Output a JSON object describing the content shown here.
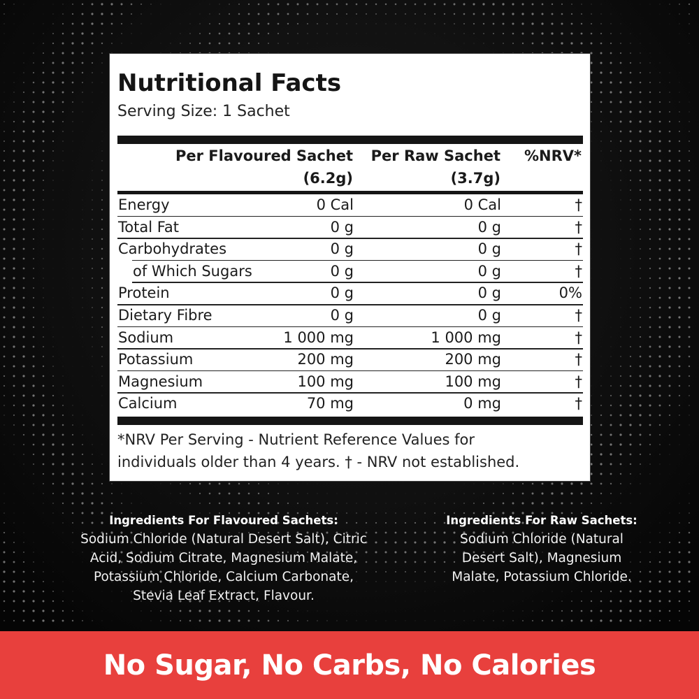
{
  "panel": {
    "title": "Nutritional Facts",
    "serving": "Serving Size: 1 Sachet",
    "headers": {
      "col1_line1": "Per Flavoured Sachet",
      "col1_line2": "(6.2g)",
      "col2_line1": "Per Raw Sachet",
      "col2_line2": "(3.7g)",
      "col3": "%NRV*"
    },
    "rows": [
      {
        "name": "Energy",
        "flavoured": "0 Cal",
        "raw": "0 Cal",
        "nrv": "†",
        "indent": false
      },
      {
        "name": "Total Fat",
        "flavoured": "0 g",
        "raw": "0 g",
        "nrv": "†",
        "indent": false
      },
      {
        "name": "Carbohydrates",
        "flavoured": "0 g",
        "raw": "0 g",
        "nrv": "†",
        "indent": false
      },
      {
        "name": "of Which Sugars",
        "flavoured": "0 g",
        "raw": "0 g",
        "nrv": "†",
        "indent": true
      },
      {
        "name": "Protein",
        "flavoured": "0 g",
        "raw": "0 g",
        "nrv": "0%",
        "indent": false
      },
      {
        "name": "Dietary Fibre",
        "flavoured": "0 g",
        "raw": "0 g",
        "nrv": "†",
        "indent": false
      },
      {
        "name": "Sodium",
        "flavoured": "1 000 mg",
        "raw": "1 000 mg",
        "nrv": "†",
        "indent": false
      },
      {
        "name": "Potassium",
        "flavoured": "200 mg",
        "raw": "200 mg",
        "nrv": "†",
        "indent": false
      },
      {
        "name": "Magnesium",
        "flavoured": "100 mg",
        "raw": "100 mg",
        "nrv": "†",
        "indent": false
      },
      {
        "name": "Calcium",
        "flavoured": "70 mg",
        "raw": "0 mg",
        "nrv": "†",
        "indent": false
      }
    ],
    "footnote_line1": "*NRV Per Serving - Nutrient Reference Values for",
    "footnote_line2": "individuals older than 4 years. † - NRV not established."
  },
  "ingredients": {
    "flavoured": {
      "heading": "Ingredients For Flavoured Sachets:",
      "lines": [
        "Sodium Chloride (Natural Desert Salt), Citric",
        "Acid, Sodium Citrate, Magnesium Malate,",
        "Potassium Chloride, Calcium Carbonate,",
        "Stevia Leaf Extract, Flavour."
      ]
    },
    "raw": {
      "heading": "Ingredients For Raw Sachets:",
      "lines": [
        "Sodium Chloride (Natural",
        "Desert Salt), Magnesium",
        "Malate, Potassium Chloride."
      ]
    }
  },
  "banner": {
    "text": "No Sugar, No Carbs, No Calories",
    "color": "#e8403d"
  }
}
